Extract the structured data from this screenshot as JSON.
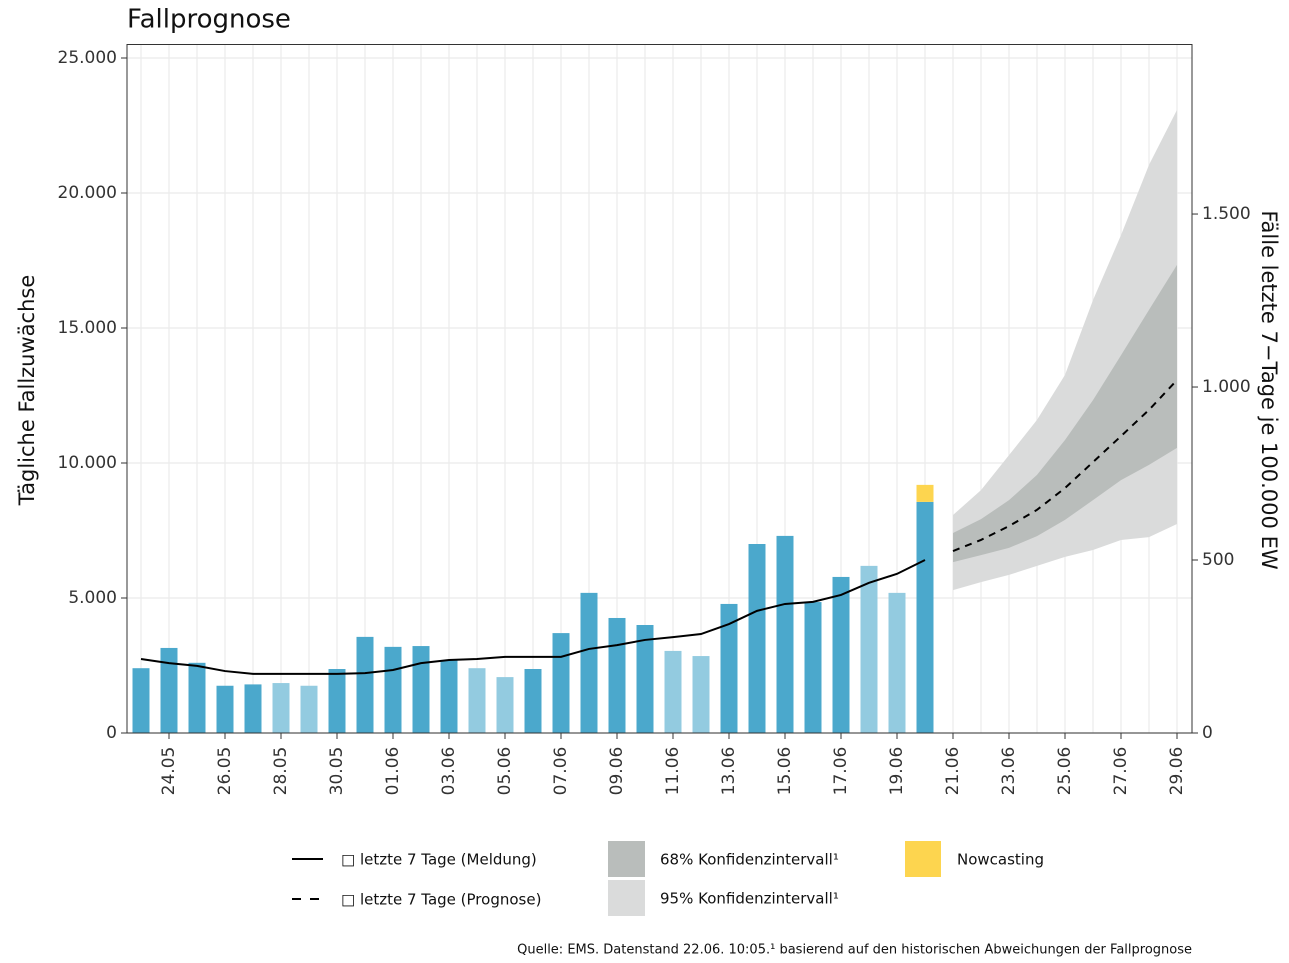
{
  "chart_data": {
    "type": "bar",
    "title": "Fallprognose",
    "y_label": "Tägliche Fallzuwächse",
    "y2_label": "Fälle letzte 7−Tage je 100.000 EW",
    "source": "Quelle: EMS. Datenstand 22.06. 10:05.¹ basierend auf den historischen Abweichungen der Fallprognose",
    "categories": [
      null,
      "24.05",
      null,
      "26.05",
      null,
      "28.05",
      null,
      "30.05",
      null,
      "01.06",
      null,
      "03.06",
      null,
      "05.06",
      null,
      "07.06",
      null,
      "09.06",
      null,
      "11.06",
      null,
      "13.06",
      null,
      "15.06",
      null,
      "17.06",
      null,
      "19.06",
      null,
      "21.06",
      null,
      "23.06",
      null,
      "25.06",
      null,
      "27.06",
      null,
      "29.06"
    ],
    "ylim": [
      0,
      25500
    ],
    "yticks": [
      0,
      {
        "value": 5000,
        "label": "5.000"
      },
      {
        "value": 10000,
        "label": "10.000"
      },
      {
        "value": 15000,
        "label": "15.000"
      },
      {
        "value": 20000,
        "label": "20.000"
      },
      {
        "value": 25000,
        "label": "25.000"
      }
    ],
    "y2lim": [
      0,
      1990
    ],
    "y2ticks": [
      0,
      500,
      {
        "value": 1000,
        "label": "1.000"
      },
      {
        "value": 1500,
        "label": "1.500"
      }
    ],
    "grid": true,
    "bars": {
      "values": [
        2400,
        3150,
        2600,
        1750,
        1800,
        1850,
        1750,
        2370,
        3560,
        3190,
        3220,
        2700,
        2400,
        2070,
        2370,
        3700,
        5190,
        4260,
        4000,
        3040,
        2850,
        4780,
        7000,
        7300,
        4850,
        5780,
        6190,
        5190,
        8560,
        null,
        null,
        null,
        null,
        null,
        null,
        null,
        null,
        null
      ],
      "colors": [
        "#4ba8cc",
        "#4ba8cc",
        "#4ba8cc",
        "#4ba8cc",
        "#4ba8cc",
        "#93cbe0",
        "#93cbe0",
        "#4ba8cc",
        "#4ba8cc",
        "#4ba8cc",
        "#4ba8cc",
        "#4ba8cc",
        "#93cbe0",
        "#93cbe0",
        "#4ba8cc",
        "#4ba8cc",
        "#4ba8cc",
        "#4ba8cc",
        "#4ba8cc",
        "#93cbe0",
        "#93cbe0",
        "#4ba8cc",
        "#4ba8cc",
        "#4ba8cc",
        "#4ba8cc",
        "#4ba8cc",
        "#93cbe0",
        "#93cbe0",
        "#4ba8cc",
        null,
        null,
        null,
        null,
        null,
        null,
        null,
        null,
        null
      ]
    },
    "series": [
      {
        "name": "Nowcasting",
        "color": "#fdd54f",
        "stacked": true,
        "values": [
          null,
          null,
          null,
          null,
          null,
          null,
          null,
          null,
          null,
          null,
          null,
          null,
          null,
          null,
          null,
          null,
          null,
          null,
          null,
          null,
          null,
          null,
          null,
          null,
          null,
          null,
          null,
          null,
          630,
          null,
          null,
          null,
          null,
          null,
          null,
          null,
          null,
          null
        ]
      },
      {
        "name": "□ letzte 7 Tage (Meldung)",
        "color": "#000000",
        "axis": "y2",
        "dash": false,
        "values": [
          214,
          202,
          194,
          179,
          171,
          171,
          171,
          171,
          173,
          182,
          202,
          211,
          214,
          220,
          220,
          220,
          243,
          254,
          269,
          277,
          286,
          315,
          353,
          373,
          379,
          399,
          434,
          460,
          500,
          null,
          null,
          null,
          null,
          null,
          null,
          null,
          null,
          null
        ]
      },
      {
        "name": "□ letzte 7 Tage (Prognose)",
        "color": "#000000",
        "axis": "y2",
        "dash": true,
        "values": [
          null,
          null,
          null,
          null,
          null,
          null,
          null,
          null,
          null,
          null,
          null,
          null,
          null,
          null,
          null,
          null,
          null,
          null,
          null,
          null,
          null,
          null,
          null,
          null,
          null,
          null,
          null,
          null,
          null,
          526,
          558,
          598,
          645,
          708,
          783,
          858,
          934,
          1020
        ]
      }
    ],
    "bands": [
      {
        "name": "95% Konfidenzintervall¹",
        "color": "#dadbdb",
        "axis": "y2",
        "upper": [
          null,
          null,
          null,
          null,
          null,
          null,
          null,
          null,
          null,
          null,
          null,
          null,
          null,
          null,
          null,
          null,
          null,
          null,
          null,
          null,
          null,
          null,
          null,
          null,
          null,
          null,
          null,
          null,
          null,
          630,
          702,
          803,
          905,
          1035,
          1251,
          1439,
          1642,
          1801
        ],
        "lower": [
          null,
          null,
          null,
          null,
          null,
          null,
          null,
          null,
          null,
          null,
          null,
          null,
          null,
          null,
          null,
          null,
          null,
          null,
          null,
          null,
          null,
          null,
          null,
          null,
          null,
          null,
          null,
          null,
          null,
          413,
          436,
          457,
          483,
          509,
          529,
          558,
          566,
          604
        ]
      },
      {
        "name": "68% Konfidenzintervall¹",
        "color": "#b9bdbb",
        "axis": "y2",
        "upper": [
          null,
          null,
          null,
          null,
          null,
          null,
          null,
          null,
          null,
          null,
          null,
          null,
          null,
          null,
          null,
          null,
          null,
          null,
          null,
          null,
          null,
          null,
          null,
          null,
          null,
          null,
          null,
          null,
          null,
          578,
          618,
          673,
          746,
          847,
          962,
          1092,
          1223,
          1353
        ],
        "lower": [
          null,
          null,
          null,
          null,
          null,
          null,
          null,
          null,
          null,
          null,
          null,
          null,
          null,
          null,
          null,
          null,
          null,
          null,
          null,
          null,
          null,
          null,
          null,
          null,
          null,
          null,
          null,
          null,
          null,
          494,
          514,
          535,
          569,
          616,
          673,
          731,
          775,
          824
        ]
      }
    ]
  }
}
